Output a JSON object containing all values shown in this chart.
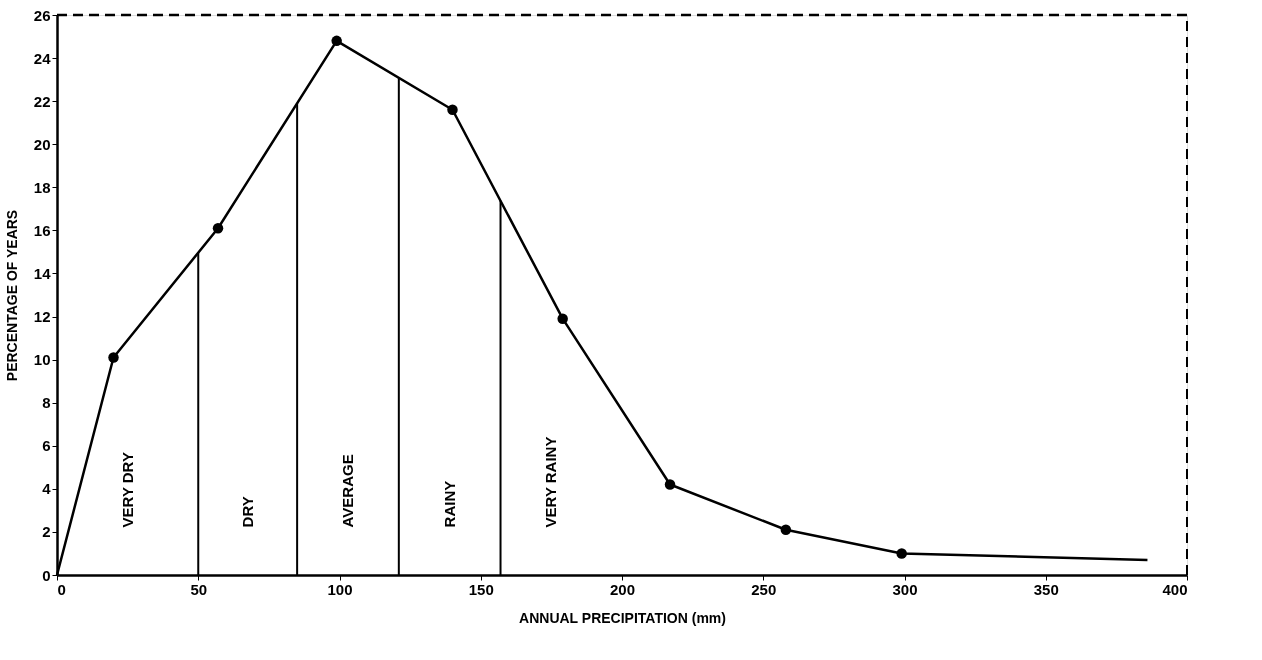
{
  "chart_data": {
    "type": "line",
    "xlabel": "ANNUAL PRECIPITATION    (mm)",
    "ylabel": "PERCENTAGE OF YEARS",
    "series": [
      {
        "color": "#000000",
        "marker": "none",
        "x": [
          0,
          20,
          57,
          99,
          140,
          179,
          217,
          258,
          299,
          386
        ],
        "values": [
          0,
          10.1,
          16.1,
          24.8,
          21.6,
          11.9,
          4.2,
          2.1,
          1.0,
          0.7
        ]
      },
      {
        "type": "scatter",
        "color": "#000000",
        "marker": "circle",
        "x": [
          20,
          57,
          99,
          140,
          179,
          217,
          258,
          299
        ],
        "values": [
          10.1,
          16.1,
          24.8,
          21.6,
          11.9,
          4.2,
          2.1,
          1.0
        ]
      }
    ],
    "ref_lines": [
      {
        "axis": "x",
        "value": 50
      },
      {
        "axis": "x",
        "value": 85
      },
      {
        "axis": "x",
        "value": 121
      },
      {
        "axis": "x",
        "value": 157
      }
    ],
    "annotations": [
      "VERY DRY",
      "DRY",
      "AVERAGE",
      "RAINY",
      "VERY RAINY"
    ],
    "xlim": [
      0,
      400
    ],
    "xticks": [
      0,
      50,
      100,
      150,
      200,
      250,
      300,
      350,
      400
    ],
    "ylim": [
      0,
      26
    ],
    "yticks": [
      0,
      2,
      4,
      6,
      8,
      10,
      12,
      14,
      16,
      18,
      20,
      22,
      24,
      26
    ],
    "grid": false,
    "line_style": "solid"
  }
}
